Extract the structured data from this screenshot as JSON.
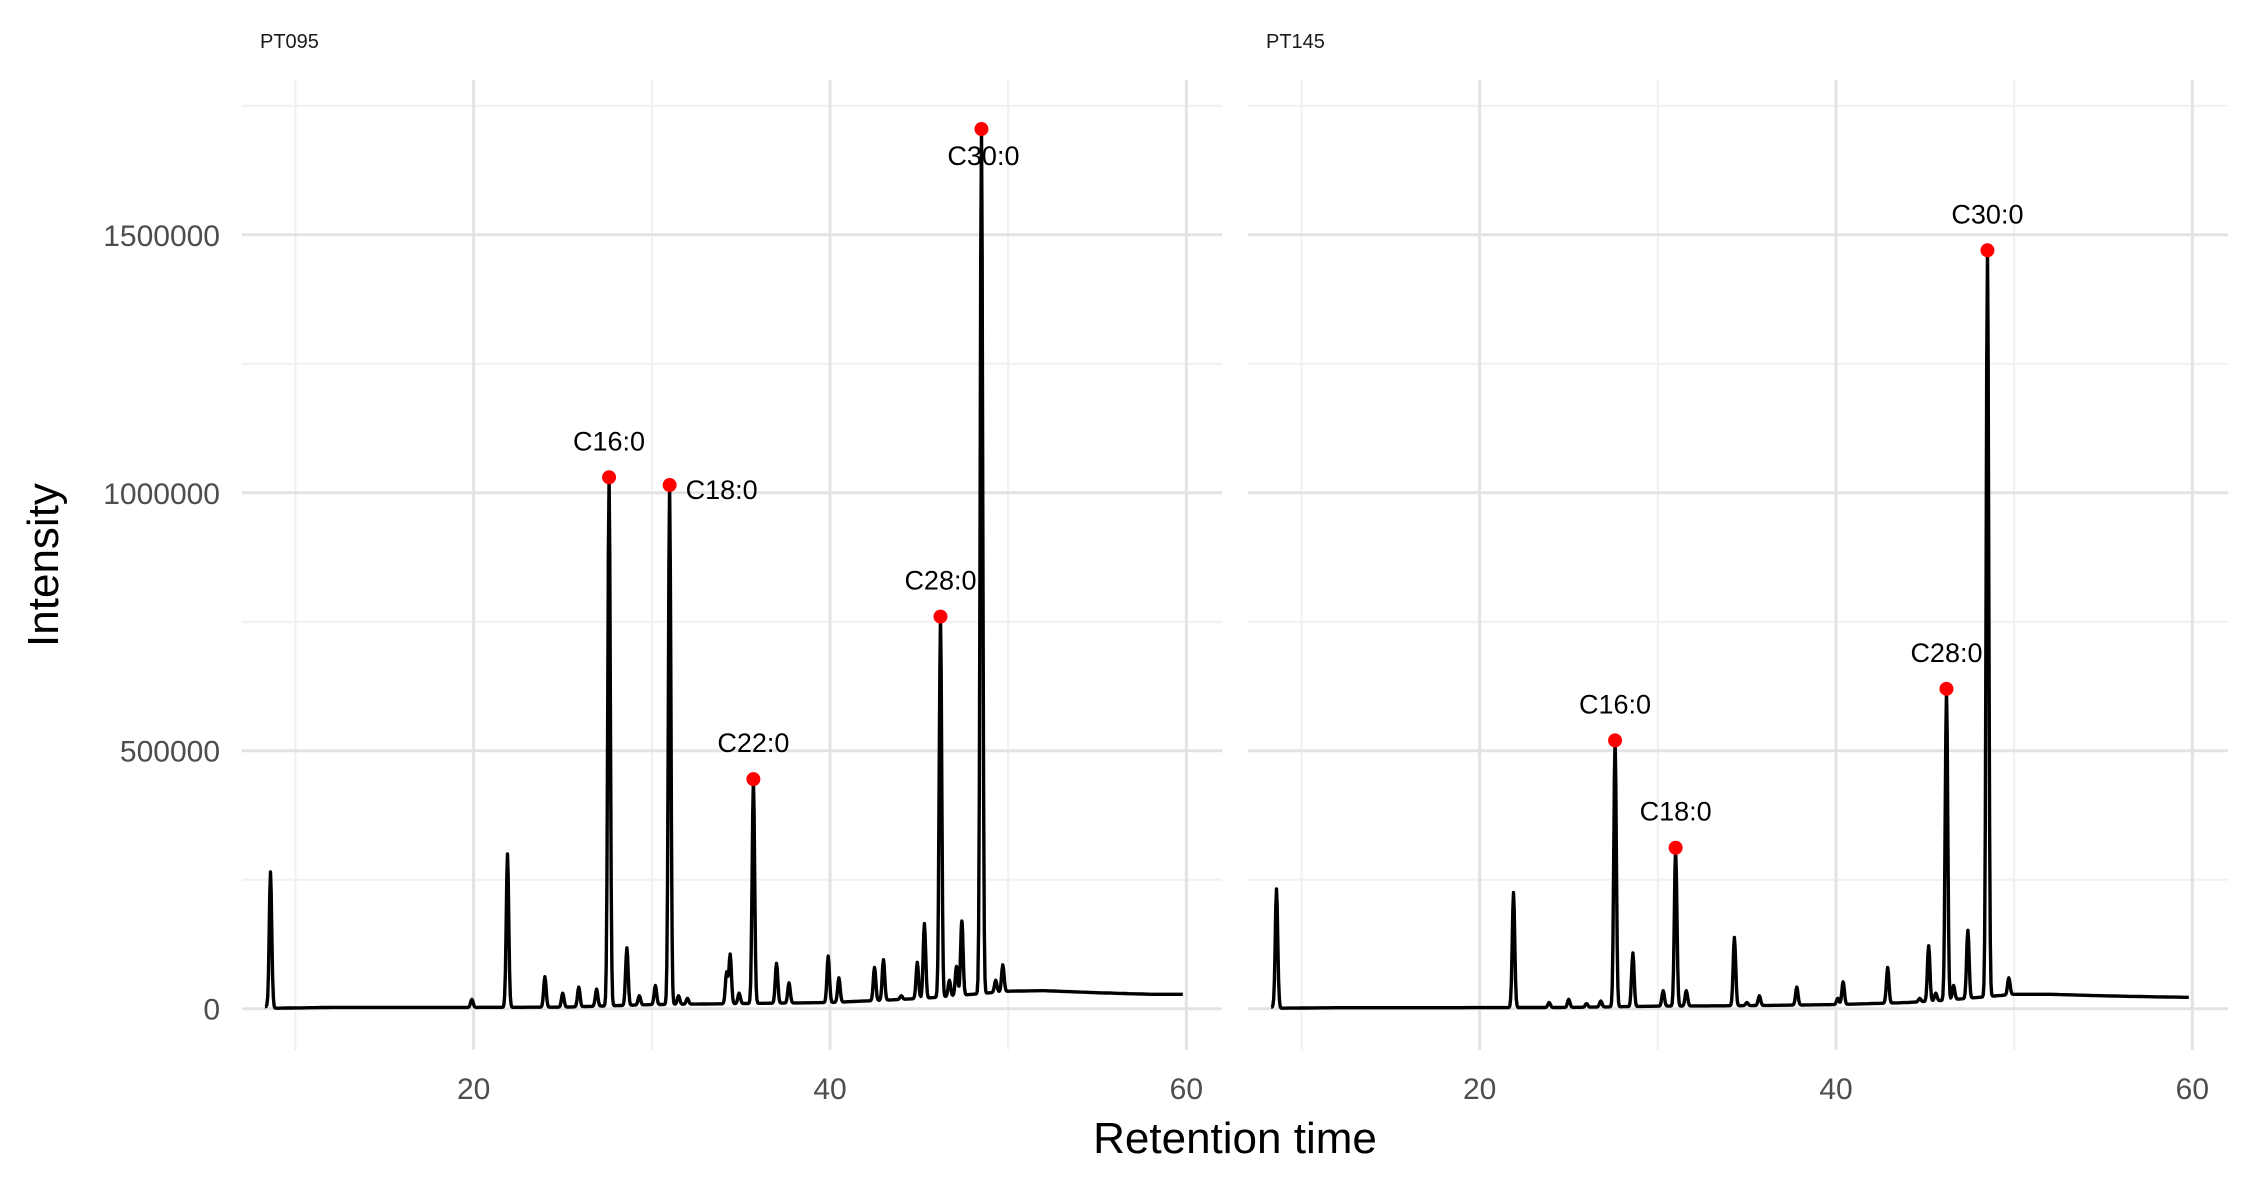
{
  "chart_data": {
    "type": "line",
    "xlabel": "Retention time",
    "ylabel": "Intensity",
    "xlim": [
      7,
      62
    ],
    "ylim": [
      -80000,
      1800000
    ],
    "x_ticks": [
      20,
      40,
      60
    ],
    "x_minor_ticks": [
      10,
      30,
      50
    ],
    "y_ticks": [
      0,
      500000,
      1000000,
      1500000
    ],
    "y_tick_labels": [
      "0",
      "500000",
      "1000000",
      "1500000"
    ],
    "y_minor_ticks": [
      250000,
      750000,
      1250000,
      1750000
    ],
    "grid": true,
    "panels": [
      {
        "title": "PT095",
        "baseline": [
          [
            8.3,
            4000
          ],
          [
            8.9,
            1000
          ],
          [
            12,
            2500
          ],
          [
            18,
            2500
          ],
          [
            25,
            3000
          ],
          [
            30,
            8000
          ],
          [
            35,
            10000
          ],
          [
            40,
            12000
          ],
          [
            44,
            18000
          ],
          [
            46,
            22000
          ],
          [
            48,
            28000
          ],
          [
            50,
            34000
          ],
          [
            52,
            35000
          ],
          [
            55,
            31000
          ],
          [
            58,
            28000
          ],
          [
            60,
            28000
          ]
        ],
        "peaks": [
          [
            8.6,
            265000
          ],
          [
            19.9,
            18000
          ],
          [
            21.9,
            300000
          ],
          [
            24.0,
            62000
          ],
          [
            25.0,
            30000
          ],
          [
            25.9,
            42000
          ],
          [
            26.9,
            38000
          ],
          [
            27.6,
            1030000
          ],
          [
            28.6,
            118000
          ],
          [
            29.3,
            25000
          ],
          [
            30.2,
            45000
          ],
          [
            31.0,
            1015000
          ],
          [
            31.5,
            25000
          ],
          [
            32.0,
            20000
          ],
          [
            34.2,
            70000
          ],
          [
            34.4,
            105000
          ],
          [
            34.9,
            30000
          ],
          [
            35.7,
            445000
          ],
          [
            37.0,
            88000
          ],
          [
            37.7,
            50000
          ],
          [
            39.9,
            102000
          ],
          [
            40.5,
            60000
          ],
          [
            42.5,
            80000
          ],
          [
            43.0,
            95000
          ],
          [
            44.0,
            25000
          ],
          [
            44.9,
            90000
          ],
          [
            45.3,
            165000
          ],
          [
            46.2,
            760000
          ],
          [
            46.7,
            55000
          ],
          [
            47.1,
            82000
          ],
          [
            47.4,
            170000
          ],
          [
            48.5,
            1705000
          ],
          [
            49.3,
            55000
          ],
          [
            49.7,
            85000
          ]
        ],
        "annotations": [
          {
            "label": "C16:0",
            "x": 27.6,
            "y": 1030000,
            "position": "above"
          },
          {
            "label": "C18:0",
            "x": 31.0,
            "y": 1015000,
            "position": "right"
          },
          {
            "label": "C22:0",
            "x": 35.7,
            "y": 445000,
            "position": "above"
          },
          {
            "label": "C28:0",
            "x": 46.2,
            "y": 760000,
            "position": "above"
          },
          {
            "label": "C30:0",
            "x": 48.5,
            "y": 1705000,
            "position": "below"
          }
        ]
      },
      {
        "title": "PT145",
        "baseline": [
          [
            8.3,
            3000
          ],
          [
            8.9,
            1000
          ],
          [
            12,
            2000
          ],
          [
            18,
            2000
          ],
          [
            25,
            2500
          ],
          [
            30,
            5000
          ],
          [
            35,
            6000
          ],
          [
            40,
            8000
          ],
          [
            44,
            12000
          ],
          [
            46,
            16000
          ],
          [
            48,
            22000
          ],
          [
            50,
            28000
          ],
          [
            52,
            28000
          ],
          [
            55,
            25000
          ],
          [
            58,
            23000
          ],
          [
            60,
            22000
          ]
        ],
        "peaks": [
          [
            8.6,
            232000
          ],
          [
            21.9,
            225000
          ],
          [
            23.9,
            12000
          ],
          [
            25.0,
            18000
          ],
          [
            26.0,
            10000
          ],
          [
            26.8,
            15000
          ],
          [
            27.6,
            520000
          ],
          [
            28.6,
            108000
          ],
          [
            30.3,
            35000
          ],
          [
            31.0,
            312000
          ],
          [
            31.6,
            35000
          ],
          [
            34.3,
            138000
          ],
          [
            35.0,
            12000
          ],
          [
            35.7,
            25000
          ],
          [
            37.8,
            42000
          ],
          [
            40.1,
            20000
          ],
          [
            40.4,
            52000
          ],
          [
            42.9,
            80000
          ],
          [
            44.7,
            20000
          ],
          [
            45.2,
            122000
          ],
          [
            45.6,
            30000
          ],
          [
            46.2,
            620000
          ],
          [
            46.6,
            45000
          ],
          [
            47.4,
            152000
          ],
          [
            48.5,
            1470000
          ],
          [
            49.7,
            60000
          ]
        ],
        "annotations": [
          {
            "label": "C16:0",
            "x": 27.6,
            "y": 520000,
            "position": "above"
          },
          {
            "label": "C18:0",
            "x": 31.0,
            "y": 312000,
            "position": "above"
          },
          {
            "label": "C28:0",
            "x": 46.2,
            "y": 620000,
            "position": "above"
          },
          {
            "label": "C30:0",
            "x": 48.5,
            "y": 1470000,
            "position": "above"
          }
        ]
      }
    ]
  },
  "colors": {
    "line": "#000000",
    "peak_marker": "#ff0000",
    "grid": "#e3e3e3"
  }
}
